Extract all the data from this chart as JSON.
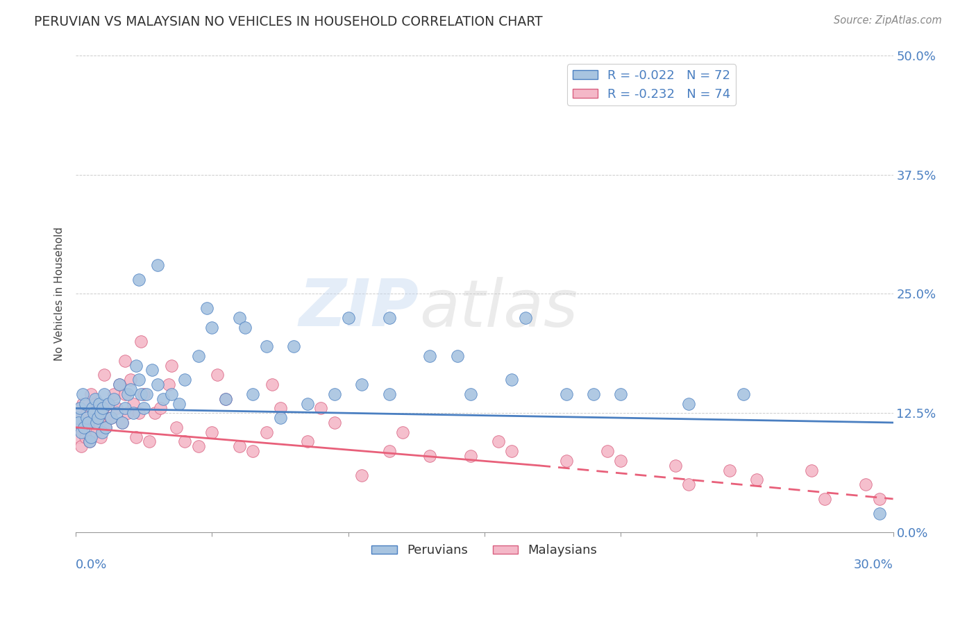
{
  "title": "PERUVIAN VS MALAYSIAN NO VEHICLES IN HOUSEHOLD CORRELATION CHART",
  "source": "Source: ZipAtlas.com",
  "ylabel": "No Vehicles in Household",
  "xmin": 0.0,
  "xmax": 30.0,
  "ymin": 0.0,
  "ymax": 50.0,
  "yticks": [
    0.0,
    12.5,
    25.0,
    37.5,
    50.0
  ],
  "peruvian_R": -0.022,
  "peruvian_N": 72,
  "malaysian_R": -0.232,
  "malaysian_N": 74,
  "peruvian_color": "#a8c4e0",
  "malaysian_color": "#f4b8c8",
  "peruvian_line_color": "#4a7fc1",
  "malaysian_line_color": "#e8607a",
  "watermark_zip": "ZIP",
  "watermark_atlas": "atlas",
  "legend_label_1": "Peruvians",
  "legend_label_2": "Malaysians",
  "peruvian_x": [
    0.05,
    0.1,
    0.15,
    0.2,
    0.25,
    0.3,
    0.35,
    0.4,
    0.45,
    0.5,
    0.55,
    0.6,
    0.65,
    0.7,
    0.75,
    0.8,
    0.85,
    0.9,
    0.95,
    1.0,
    1.05,
    1.1,
    1.2,
    1.3,
    1.4,
    1.5,
    1.6,
    1.7,
    1.8,
    1.9,
    2.0,
    2.1,
    2.2,
    2.3,
    2.4,
    2.5,
    2.6,
    2.8,
    3.0,
    3.2,
    3.5,
    3.8,
    4.0,
    4.5,
    5.0,
    5.5,
    6.0,
    6.5,
    7.0,
    7.5,
    8.5,
    9.5,
    10.5,
    11.5,
    13.0,
    14.5,
    16.0,
    18.0,
    20.0,
    22.5,
    2.3,
    3.0,
    4.8,
    6.2,
    8.0,
    10.0,
    11.5,
    14.0,
    16.5,
    19.0,
    24.5,
    29.5
  ],
  "peruvian_y": [
    12.0,
    11.5,
    13.0,
    10.5,
    14.5,
    11.0,
    13.5,
    12.0,
    11.5,
    9.5,
    10.0,
    13.0,
    12.5,
    14.0,
    11.5,
    12.0,
    13.5,
    12.5,
    10.5,
    13.0,
    14.5,
    11.0,
    13.5,
    12.0,
    14.0,
    12.5,
    15.5,
    11.5,
    13.0,
    14.5,
    15.0,
    12.5,
    17.5,
    16.0,
    14.5,
    13.0,
    14.5,
    17.0,
    15.5,
    14.0,
    14.5,
    13.5,
    16.0,
    18.5,
    21.5,
    14.0,
    22.5,
    14.5,
    19.5,
    12.0,
    13.5,
    14.5,
    15.5,
    14.5,
    18.5,
    14.5,
    16.0,
    14.5,
    14.5,
    13.5,
    26.5,
    28.0,
    23.5,
    21.5,
    19.5,
    22.5,
    22.5,
    18.5,
    22.5,
    14.5,
    14.5,
    2.0
  ],
  "malaysian_x": [
    0.05,
    0.1,
    0.15,
    0.2,
    0.25,
    0.3,
    0.35,
    0.4,
    0.45,
    0.5,
    0.55,
    0.6,
    0.65,
    0.7,
    0.75,
    0.8,
    0.85,
    0.9,
    0.95,
    1.0,
    1.05,
    1.1,
    1.2,
    1.3,
    1.4,
    1.5,
    1.6,
    1.7,
    1.8,
    1.9,
    2.0,
    2.1,
    2.2,
    2.3,
    2.5,
    2.7,
    2.9,
    3.1,
    3.4,
    3.7,
    4.0,
    4.5,
    5.0,
    5.5,
    6.0,
    6.5,
    7.0,
    7.5,
    8.5,
    9.5,
    10.5,
    11.5,
    13.0,
    14.5,
    16.0,
    18.0,
    20.0,
    22.5,
    25.0,
    27.5,
    1.8,
    2.4,
    3.5,
    5.2,
    7.2,
    9.0,
    12.0,
    15.5,
    19.5,
    24.0,
    27.0,
    29.0,
    29.5,
    22.0
  ],
  "malaysian_y": [
    11.0,
    10.0,
    12.5,
    9.0,
    13.5,
    11.5,
    10.0,
    12.5,
    11.0,
    9.5,
    14.5,
    12.0,
    11.5,
    13.5,
    10.5,
    12.0,
    11.5,
    10.0,
    13.0,
    12.5,
    16.5,
    11.0,
    13.5,
    12.0,
    14.5,
    13.0,
    15.5,
    11.5,
    14.5,
    12.5,
    16.0,
    13.5,
    10.0,
    12.5,
    14.5,
    9.5,
    12.5,
    13.0,
    15.5,
    11.0,
    9.5,
    9.0,
    10.5,
    14.0,
    9.0,
    8.5,
    10.5,
    13.0,
    9.5,
    11.5,
    6.0,
    8.5,
    8.0,
    8.0,
    8.5,
    7.5,
    7.5,
    5.0,
    5.5,
    3.5,
    18.0,
    20.0,
    17.5,
    16.5,
    15.5,
    13.0,
    10.5,
    9.5,
    8.5,
    6.5,
    6.5,
    5.0,
    3.5,
    7.0
  ]
}
